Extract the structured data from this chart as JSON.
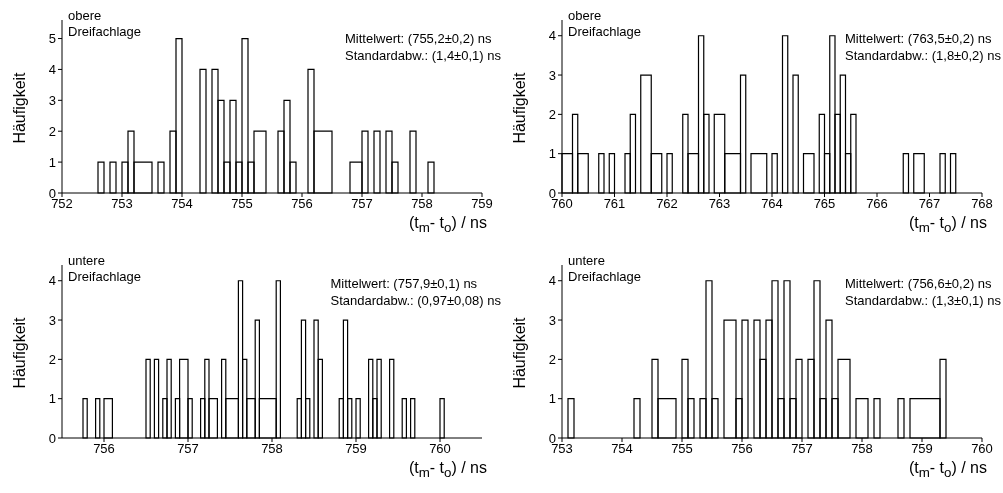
{
  "chart_data": [
    {
      "type": "histogram",
      "title": "obere Dreifachlage",
      "xlabel": "(t$_{m}$- t$_{o}$) / ns",
      "ylabel": "Häufigkeit",
      "annotations": [
        "Mittelwert: (755,2±0,2) ns",
        "Standardabw.: (1,4±0,1) ns"
      ],
      "color": "#000000",
      "bins": [
        752.6,
        752.7,
        752.8,
        752.9,
        753.0,
        753.1,
        753.2,
        753.5,
        753.6,
        753.7,
        753.8,
        753.9,
        754.0,
        754.3,
        754.4,
        754.5,
        754.6,
        754.7,
        754.8,
        754.9,
        755.0,
        755.1,
        755.2,
        755.4,
        755.6,
        755.7,
        755.8,
        755.9,
        756.1,
        756.2,
        756.5,
        756.8,
        757.0,
        757.1,
        757.2,
        757.3,
        757.4,
        757.5,
        757.6,
        757.8,
        757.9,
        758.1,
        758.2
      ],
      "values": [
        1,
        0,
        1,
        0,
        1,
        2,
        1,
        0,
        1,
        0,
        2,
        5,
        0,
        4,
        0,
        4,
        3,
        1,
        3,
        1,
        5,
        1,
        2,
        0,
        2,
        3,
        1,
        0,
        4,
        2,
        0,
        1,
        2,
        0,
        2,
        0,
        2,
        1,
        0,
        2,
        0,
        1
      ],
      "xlim": [
        752,
        759
      ],
      "xticks": [
        752,
        753,
        754,
        755,
        756,
        757,
        758,
        759
      ],
      "ylim": [
        0,
        5.6
      ],
      "yticks": [
        0,
        1,
        2,
        3,
        4,
        5
      ]
    },
    {
      "type": "histogram",
      "title": "obere Dreifachlage",
      "xlabel": "(t$_{m}$- t$_{o}$) / ns",
      "ylabel": "Häufigkeit",
      "annotations": [
        "Mittelwert: (763,5±0,2) ns",
        "Standardabw.: (1,8±0,2) ns"
      ],
      "color": "#000000",
      "bins": [
        760.0,
        760.2,
        760.3,
        760.5,
        760.7,
        760.8,
        760.9,
        761.0,
        761.2,
        761.3,
        761.4,
        761.5,
        761.7,
        761.9,
        762.0,
        762.1,
        762.3,
        762.4,
        762.6,
        762.7,
        762.8,
        762.9,
        763.1,
        763.4,
        763.5,
        763.6,
        763.9,
        764.0,
        764.1,
        764.2,
        764.3,
        764.4,
        764.5,
        764.6,
        764.8,
        764.9,
        765.0,
        765.1,
        765.2,
        765.3,
        765.4,
        765.5,
        765.6,
        766.5,
        766.6,
        766.7,
        766.9,
        767.2,
        767.3,
        767.4,
        767.5
      ],
      "values": [
        1,
        2,
        1,
        0,
        1,
        0,
        1,
        0,
        1,
        2,
        0,
        3,
        1,
        0,
        1,
        0,
        2,
        1,
        4,
        2,
        0,
        2,
        1,
        3,
        0,
        1,
        0,
        1,
        0,
        4,
        0,
        3,
        0,
        1,
        0,
        2,
        1,
        4,
        2,
        3,
        1,
        2,
        0,
        1,
        0,
        1,
        0,
        1,
        0,
        1
      ],
      "xlim": [
        760,
        768
      ],
      "xticks": [
        760,
        761,
        762,
        763,
        764,
        765,
        766,
        767,
        768
      ],
      "ylim": [
        0,
        4.4
      ],
      "yticks": [
        0,
        1,
        2,
        3,
        4
      ]
    },
    {
      "type": "histogram",
      "title": "untere Dreifachlage",
      "xlabel": "(t$_{m}$- t$_{o}$) / ns",
      "ylabel": "Häufigkeit",
      "annotations": [
        "Mittelwert: (757,9±0,1) ns",
        "Standardabw.: (0,97±0,08) ns"
      ],
      "color": "#000000",
      "bins": [
        755.75,
        755.8,
        755.9,
        755.95,
        756.0,
        756.1,
        756.5,
        756.55,
        756.6,
        756.65,
        756.7,
        756.75,
        756.8,
        756.85,
        756.9,
        757.0,
        757.05,
        757.15,
        757.2,
        757.25,
        757.35,
        757.4,
        757.45,
        757.6,
        757.65,
        757.7,
        757.8,
        757.85,
        758.05,
        758.1,
        758.3,
        758.35,
        758.4,
        758.45,
        758.5,
        758.55,
        758.6,
        758.8,
        758.85,
        758.9,
        758.95,
        759.0,
        759.05,
        759.15,
        759.2,
        759.25,
        759.3,
        759.4,
        759.45,
        759.55,
        759.6,
        759.65,
        759.7,
        760.0,
        760.05
      ],
      "values": [
        1,
        0,
        1,
        0,
        1,
        0,
        2,
        0,
        2,
        0,
        1,
        2,
        0,
        1,
        2,
        1,
        0,
        1,
        2,
        1,
        0,
        2,
        1,
        4,
        2,
        1,
        3,
        1,
        4,
        0,
        1,
        3,
        1,
        0,
        3,
        2,
        0,
        1,
        3,
        1,
        0,
        1,
        0,
        2,
        1,
        2,
        0,
        2,
        0,
        1,
        0,
        1,
        0,
        1
      ],
      "xlim": [
        755.5,
        760.5
      ],
      "xticks": [
        756,
        757,
        758,
        759,
        760
      ],
      "ylim": [
        0,
        4.4
      ],
      "yticks": [
        0,
        1,
        2,
        3,
        4
      ]
    },
    {
      "type": "histogram",
      "title": "untere Dreifachlage",
      "xlabel": "(t$_{m}$- t$_{o}$) / ns",
      "ylabel": "Häufigkeit",
      "annotations": [
        "Mittelwert: (756,6±0,2) ns",
        "Standardabw.: (1,3±0,1) ns"
      ],
      "color": "#000000",
      "bins": [
        753.1,
        753.2,
        754.2,
        754.3,
        754.5,
        754.6,
        754.9,
        755.0,
        755.1,
        755.2,
        755.3,
        755.4,
        755.5,
        755.6,
        755.7,
        755.9,
        756.0,
        756.1,
        756.2,
        756.3,
        756.4,
        756.5,
        756.6,
        756.7,
        756.8,
        756.9,
        757.0,
        757.1,
        757.2,
        757.3,
        757.4,
        757.5,
        757.6,
        757.8,
        757.9,
        758.1,
        758.2,
        758.3,
        758.6,
        758.7,
        758.8,
        759.3,
        759.4
      ],
      "values": [
        1,
        0,
        1,
        0,
        2,
        1,
        0,
        2,
        1,
        0,
        1,
        4,
        1,
        0,
        3,
        1,
        3,
        0,
        3,
        2,
        3,
        4,
        1,
        4,
        1,
        2,
        0,
        2,
        4,
        1,
        3,
        1,
        2,
        0,
        1,
        0,
        1,
        0,
        1,
        0,
        1,
        2
      ],
      "xlim": [
        753,
        760
      ],
      "xticks": [
        753,
        754,
        755,
        756,
        757,
        758,
        759,
        760
      ],
      "ylim": [
        0,
        4.4
      ],
      "yticks": [
        0,
        1,
        2,
        3,
        4
      ]
    }
  ]
}
